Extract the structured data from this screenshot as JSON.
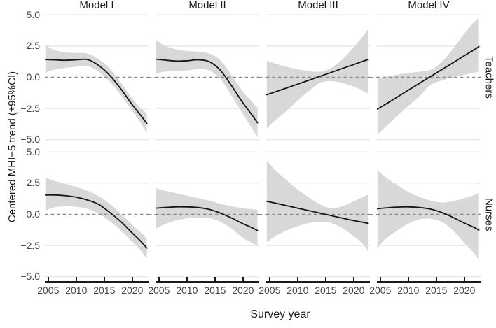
{
  "figure": {
    "y_axis_title": "Centered MHI−5 trend (±95%CI)",
    "x_axis_title": "Survey year",
    "col_labels": [
      "Model I",
      "Model II",
      "Model III",
      "Model IV"
    ],
    "row_labels": [
      "Teachers",
      "Nurses"
    ],
    "y_tick_labels": [
      "5.0",
      "2.5",
      "0.0",
      "−2.5",
      "−5.0"
    ],
    "x_tick_labels": [
      "2005",
      "2010",
      "2015",
      "2020"
    ]
  },
  "chart_data": {
    "type": "line",
    "title": "",
    "xlabel": "Survey year",
    "ylabel": "Centered MHI−5 trend (±95%CI)",
    "facet_rows": [
      "Teachers",
      "Nurses"
    ],
    "facet_cols": [
      "Model I",
      "Model II",
      "Model III",
      "Model IV"
    ],
    "x_range": [
      2004.4,
      2022.9
    ],
    "y_range": [
      -5.35,
      5.35
    ],
    "x_ticks": [
      2005,
      2010,
      2015,
      2020
    ],
    "y_ticks": [
      5.0,
      2.5,
      0.0,
      -2.5,
      -5.0
    ],
    "zero_reference_line": 0,
    "grid": "horizontal gridlines only, dashed line at y=0",
    "legend": "none; shaded band = ±95% CI around smoothed trend",
    "x": [
      2004.5,
      2006,
      2008,
      2010,
      2012,
      2014,
      2016,
      2018,
      2020,
      2021.5,
      2022.6
    ],
    "facets": [
      {
        "row": "Teachers",
        "col": "Model I",
        "line": [
          1.42,
          1.4,
          1.36,
          1.4,
          1.42,
          0.95,
          0.15,
          -0.95,
          -2.2,
          -3.05,
          -3.7
        ],
        "upper": [
          2.6,
          2.2,
          2.0,
          1.95,
          1.9,
          1.45,
          0.7,
          -0.45,
          -1.7,
          -2.45,
          -2.95
        ],
        "lower": [
          0.35,
          0.6,
          0.75,
          0.85,
          0.9,
          0.45,
          -0.35,
          -1.45,
          -2.7,
          -3.65,
          -4.5
        ]
      },
      {
        "row": "Teachers",
        "col": "Model II",
        "line": [
          1.45,
          1.38,
          1.3,
          1.32,
          1.4,
          1.25,
          0.55,
          -0.7,
          -2.05,
          -2.95,
          -3.65
        ],
        "upper": [
          3.0,
          2.55,
          2.25,
          2.1,
          2.05,
          1.9,
          1.35,
          0.15,
          -1.15,
          -1.9,
          -2.45
        ],
        "lower": [
          0.3,
          0.45,
          0.5,
          0.55,
          0.65,
          0.55,
          -0.15,
          -1.5,
          -2.95,
          -4.0,
          -4.8
        ]
      },
      {
        "row": "Teachers",
        "col": "Model III",
        "line": [
          -1.4,
          -1.17,
          -0.86,
          -0.55,
          -0.24,
          0.08,
          0.39,
          0.71,
          1.02,
          1.26,
          1.43
        ],
        "upper": [
          1.35,
          1.1,
          0.85,
          0.65,
          0.5,
          0.45,
          0.75,
          1.45,
          2.4,
          3.2,
          3.85
        ],
        "lower": [
          -4.1,
          -3.45,
          -2.7,
          -1.85,
          -1.1,
          -0.45,
          -0.3,
          -0.45,
          -0.75,
          -1.05,
          -1.3
        ]
      },
      {
        "row": "Teachers",
        "col": "Model IV",
        "line": [
          -2.55,
          -2.14,
          -1.59,
          -1.03,
          -0.48,
          0.07,
          0.62,
          1.17,
          1.73,
          2.14,
          2.45
        ],
        "upper": [
          -0.1,
          0.05,
          0.2,
          0.35,
          0.45,
          0.6,
          1.25,
          2.3,
          3.5,
          4.3,
          4.75
        ],
        "lower": [
          -4.6,
          -3.95,
          -3.1,
          -2.3,
          -1.5,
          -0.6,
          -0.25,
          0.0,
          0.2,
          0.35,
          0.45
        ]
      },
      {
        "row": "Nurses",
        "col": "Model I",
        "line": [
          1.55,
          1.55,
          1.5,
          1.38,
          1.15,
          0.8,
          0.15,
          -0.6,
          -1.5,
          -2.15,
          -2.7
        ],
        "upper": [
          2.95,
          2.7,
          2.45,
          2.2,
          1.9,
          1.45,
          0.85,
          0.05,
          -0.85,
          -1.45,
          -1.95
        ],
        "lower": [
          0.3,
          0.55,
          0.65,
          0.6,
          0.45,
          0.05,
          -0.55,
          -1.3,
          -2.2,
          -2.9,
          -3.6
        ]
      },
      {
        "row": "Nurses",
        "col": "Model II",
        "line": [
          0.5,
          0.55,
          0.6,
          0.6,
          0.55,
          0.4,
          0.1,
          -0.3,
          -0.75,
          -1.05,
          -1.3
        ],
        "upper": [
          2.1,
          1.9,
          1.7,
          1.5,
          1.3,
          1.1,
          0.85,
          0.65,
          0.5,
          0.42,
          0.38
        ],
        "lower": [
          -1.15,
          -0.8,
          -0.5,
          -0.32,
          -0.25,
          -0.3,
          -0.6,
          -1.15,
          -1.9,
          -2.25,
          -2.55
        ]
      },
      {
        "row": "Nurses",
        "col": "Model III",
        "line": [
          1.05,
          0.9,
          0.7,
          0.5,
          0.3,
          0.1,
          -0.1,
          -0.3,
          -0.5,
          -0.62,
          -0.72
        ],
        "upper": [
          4.3,
          3.55,
          2.75,
          2.0,
          1.35,
          0.8,
          0.5,
          0.65,
          1.05,
          1.35,
          1.6
        ],
        "lower": [
          -2.25,
          -1.75,
          -1.3,
          -0.95,
          -0.7,
          -0.6,
          -0.7,
          -1.1,
          -1.75,
          -2.3,
          -2.95
        ]
      },
      {
        "row": "Nurses",
        "col": "Model IV",
        "line": [
          0.45,
          0.52,
          0.58,
          0.6,
          0.55,
          0.42,
          0.15,
          -0.25,
          -0.7,
          -1.0,
          -1.25
        ],
        "upper": [
          3.55,
          2.95,
          2.35,
          1.8,
          1.4,
          1.1,
          0.95,
          1.05,
          1.3,
          1.5,
          1.7
        ],
        "lower": [
          -2.7,
          -1.95,
          -1.3,
          -0.75,
          -0.4,
          -0.35,
          -0.6,
          -1.3,
          -2.3,
          -3.0,
          -3.65
        ]
      }
    ],
    "colors": {
      "ribbon": "#d8d8d8",
      "trend_line": "#161616",
      "gridline": "#e4e4e4",
      "zero_dash": "#8a8a8a",
      "axis": "#1a1a1a",
      "tick_label": "#454545"
    }
  }
}
